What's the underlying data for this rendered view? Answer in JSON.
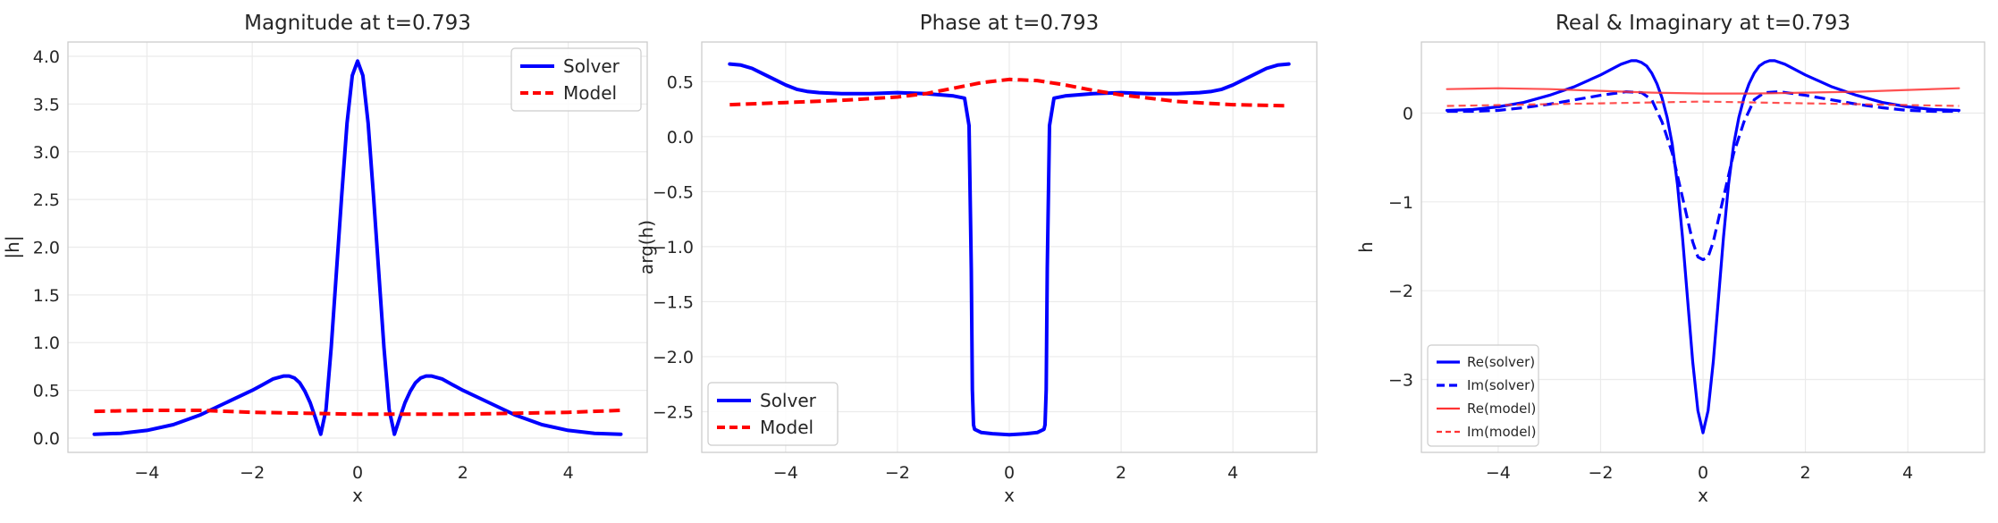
{
  "chart_data": [
    {
      "type": "line",
      "title": "Magnitude at t=0.793",
      "xlabel": "x",
      "ylabel": "|h|",
      "xlim": [
        -5.5,
        5.5
      ],
      "ylim": [
        -0.15,
        4.15
      ],
      "xticks": [
        -4,
        -2,
        0,
        2,
        4
      ],
      "yticks": [
        0.0,
        0.5,
        1.0,
        1.5,
        2.0,
        2.5,
        3.0,
        3.5,
        4.0
      ],
      "ytick_labels": [
        "0.0",
        "0.5",
        "1.0",
        "1.5",
        "2.0",
        "2.5",
        "3.0",
        "3.5",
        "4.0"
      ],
      "grid": true,
      "legend_position": "top-right",
      "series": [
        {
          "name": "Solver",
          "color": "#0000ff",
          "style": "solid",
          "x": [
            -5,
            -4.5,
            -4,
            -3.5,
            -3,
            -2.5,
            -2,
            -1.8,
            -1.6,
            -1.4,
            -1.3,
            -1.2,
            -1.1,
            -1.0,
            -0.9,
            -0.8,
            -0.7,
            -0.6,
            -0.5,
            -0.4,
            -0.3,
            -0.2,
            -0.1,
            0,
            0.1,
            0.2,
            0.3,
            0.4,
            0.5,
            0.6,
            0.7,
            0.8,
            0.9,
            1.0,
            1.1,
            1.2,
            1.3,
            1.4,
            1.6,
            1.8,
            2,
            2.5,
            3,
            3.5,
            4,
            4.5,
            5
          ],
          "y": [
            0.04,
            0.05,
            0.08,
            0.14,
            0.24,
            0.37,
            0.5,
            0.56,
            0.62,
            0.65,
            0.65,
            0.63,
            0.58,
            0.49,
            0.37,
            0.21,
            0.04,
            0.3,
            0.95,
            1.75,
            2.55,
            3.3,
            3.8,
            3.95,
            3.8,
            3.3,
            2.55,
            1.75,
            0.95,
            0.3,
            0.04,
            0.21,
            0.37,
            0.49,
            0.58,
            0.63,
            0.65,
            0.65,
            0.62,
            0.56,
            0.5,
            0.37,
            0.24,
            0.14,
            0.08,
            0.05,
            0.04
          ]
        },
        {
          "name": "Model",
          "color": "#ff0000",
          "style": "dashed",
          "x": [
            -5,
            -4,
            -3,
            -2,
            -1,
            0,
            1,
            2,
            3,
            4,
            5
          ],
          "y": [
            0.28,
            0.29,
            0.29,
            0.27,
            0.26,
            0.25,
            0.25,
            0.25,
            0.26,
            0.27,
            0.29
          ]
        }
      ]
    },
    {
      "type": "line",
      "title": "Phase at t=0.793",
      "xlabel": "x",
      "ylabel": "arg(h)",
      "xlim": [
        -5.5,
        5.5
      ],
      "ylim": [
        -2.87,
        0.86
      ],
      "xticks": [
        -4,
        -2,
        0,
        2,
        4
      ],
      "yticks": [
        0.5,
        0.0,
        -0.5,
        -1.0,
        -1.5,
        -2.0,
        -2.5
      ],
      "ytick_labels": [
        "0.5",
        "0.0",
        "−0.5",
        "−1.0",
        "−1.5",
        "−2.0",
        "−2.5"
      ],
      "grid": true,
      "legend_position": "bottom-left",
      "series": [
        {
          "name": "Solver",
          "color": "#0000ff",
          "style": "solid",
          "x": [
            -5,
            -4.8,
            -4.6,
            -4.4,
            -4.2,
            -4,
            -3.8,
            -3.6,
            -3.4,
            -3,
            -2.5,
            -2,
            -1.5,
            -1,
            -0.8,
            -0.72,
            -0.68,
            -0.66,
            -0.64,
            -0.62,
            -0.5,
            -0.3,
            0,
            0.3,
            0.5,
            0.62,
            0.64,
            0.66,
            0.68,
            0.72,
            0.8,
            1,
            1.5,
            2,
            2.5,
            3,
            3.4,
            3.6,
            3.8,
            4,
            4.2,
            4.4,
            4.6,
            4.8,
            5
          ],
          "y": [
            0.66,
            0.65,
            0.62,
            0.57,
            0.52,
            0.47,
            0.43,
            0.41,
            0.4,
            0.39,
            0.39,
            0.4,
            0.39,
            0.37,
            0.35,
            0.1,
            -1.2,
            -2.3,
            -2.62,
            -2.66,
            -2.69,
            -2.7,
            -2.71,
            -2.7,
            -2.69,
            -2.66,
            -2.62,
            -2.3,
            -1.2,
            0.1,
            0.35,
            0.37,
            0.39,
            0.4,
            0.39,
            0.39,
            0.4,
            0.41,
            0.43,
            0.47,
            0.52,
            0.57,
            0.62,
            0.65,
            0.66
          ]
        },
        {
          "name": "Model",
          "color": "#ff0000",
          "style": "dashed",
          "x": [
            -5,
            -4,
            -3,
            -2,
            -1.5,
            -1,
            -0.5,
            0,
            0.5,
            1,
            1.5,
            2,
            3,
            4,
            5
          ],
          "y": [
            0.29,
            0.31,
            0.33,
            0.36,
            0.39,
            0.44,
            0.49,
            0.52,
            0.51,
            0.47,
            0.42,
            0.38,
            0.32,
            0.29,
            0.28
          ]
        }
      ]
    },
    {
      "type": "line",
      "title": "Real & Imaginary at t=0.793",
      "xlabel": "x",
      "ylabel": "h",
      "xlim": [
        -5.5,
        5.5
      ],
      "ylim": [
        -3.82,
        0.8
      ],
      "xticks": [
        -4,
        -2,
        0,
        2,
        4
      ],
      "yticks": [
        0,
        -1,
        -2,
        -3
      ],
      "ytick_labels": [
        "0",
        "−1",
        "−2",
        "−3"
      ],
      "grid": true,
      "legend_position": "bottom-left",
      "series": [
        {
          "name": "Re(solver)",
          "color": "#0000ff",
          "style": "solid",
          "x": [
            -5,
            -4.5,
            -4,
            -3.5,
            -3,
            -2.5,
            -2,
            -1.8,
            -1.6,
            -1.4,
            -1.3,
            -1.2,
            -1.1,
            -1.0,
            -0.9,
            -0.8,
            -0.7,
            -0.6,
            -0.5,
            -0.4,
            -0.3,
            -0.2,
            -0.1,
            0,
            0.1,
            0.2,
            0.3,
            0.4,
            0.5,
            0.6,
            0.7,
            0.8,
            0.9,
            1.0,
            1.1,
            1.2,
            1.3,
            1.4,
            1.6,
            1.8,
            2,
            2.5,
            3,
            3.5,
            4,
            4.5,
            5
          ],
          "y": [
            0.03,
            0.04,
            0.07,
            0.12,
            0.2,
            0.3,
            0.43,
            0.49,
            0.55,
            0.59,
            0.59,
            0.57,
            0.53,
            0.45,
            0.33,
            0.17,
            -0.05,
            -0.35,
            -0.8,
            -1.4,
            -2.1,
            -2.8,
            -3.35,
            -3.6,
            -3.35,
            -2.8,
            -2.1,
            -1.4,
            -0.8,
            -0.35,
            -0.05,
            0.17,
            0.33,
            0.45,
            0.53,
            0.57,
            0.59,
            0.59,
            0.55,
            0.49,
            0.43,
            0.3,
            0.2,
            0.12,
            0.07,
            0.04,
            0.03
          ]
        },
        {
          "name": "Im(solver)",
          "color": "#0000ff",
          "style": "dashed",
          "x": [
            -5,
            -4.5,
            -4,
            -3.5,
            -3,
            -2.5,
            -2,
            -1.5,
            -1.2,
            -1.0,
            -0.8,
            -0.6,
            -0.4,
            -0.2,
            -0.1,
            0,
            0.1,
            0.2,
            0.4,
            0.6,
            0.8,
            1.0,
            1.2,
            1.5,
            2,
            2.5,
            3,
            3.5,
            4,
            4.5,
            5
          ],
          "y": [
            0.02,
            0.02,
            0.03,
            0.06,
            0.1,
            0.15,
            0.2,
            0.24,
            0.23,
            0.15,
            -0.1,
            -0.45,
            -0.95,
            -1.45,
            -1.62,
            -1.65,
            -1.62,
            -1.45,
            -0.95,
            -0.45,
            -0.1,
            0.15,
            0.23,
            0.24,
            0.2,
            0.15,
            0.1,
            0.06,
            0.03,
            0.02,
            0.02
          ]
        },
        {
          "name": "Re(model)",
          "color": "#ff3333",
          "style": "solid",
          "x": [
            -5,
            -4,
            -3,
            -2,
            -1,
            0,
            1,
            2,
            3,
            4,
            5
          ],
          "y": [
            0.27,
            0.28,
            0.27,
            0.25,
            0.23,
            0.22,
            0.22,
            0.23,
            0.24,
            0.26,
            0.28
          ]
        },
        {
          "name": "Im(model)",
          "color": "#ff3333",
          "style": "dashed",
          "x": [
            -5,
            -4,
            -3,
            -2,
            -1,
            0,
            1,
            2,
            3,
            4,
            5
          ],
          "y": [
            0.08,
            0.09,
            0.1,
            0.11,
            0.12,
            0.13,
            0.12,
            0.11,
            0.1,
            0.09,
            0.08
          ]
        }
      ]
    }
  ]
}
